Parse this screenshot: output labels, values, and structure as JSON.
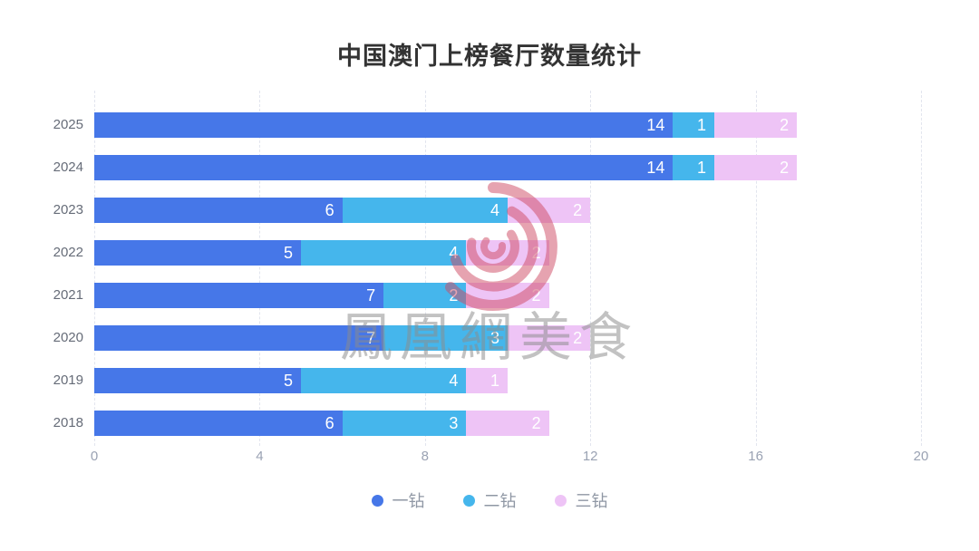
{
  "title": "中国澳门上榜餐厅数量统计",
  "watermark": {
    "logo": "phoenix-swirl-logo",
    "text": "鳳凰網美食"
  },
  "chart_data": {
    "type": "bar",
    "orientation": "horizontal",
    "stacked": true,
    "title": "中国澳门上榜餐厅数量统计",
    "categories": [
      "2025",
      "2024",
      "2023",
      "2022",
      "2021",
      "2020",
      "2019",
      "2018"
    ],
    "series": [
      {
        "name": "一钻",
        "color": "#4677e8",
        "values": [
          14,
          14,
          6,
          5,
          7,
          7,
          5,
          6
        ]
      },
      {
        "name": "二钻",
        "color": "#45b6ec",
        "values": [
          1,
          1,
          4,
          4,
          2,
          3,
          4,
          3
        ]
      },
      {
        "name": "三钻",
        "color": "#eec4f6",
        "values": [
          2,
          2,
          2,
          2,
          2,
          2,
          1,
          2
        ]
      }
    ],
    "xlim": [
      0,
      20
    ],
    "x_ticks": [
      "0",
      "4",
      "8",
      "12",
      "16",
      "20"
    ],
    "grid": "vertical-dashed",
    "legend_position": "bottom",
    "value_label_style": "inside-right-white",
    "xlabel": "",
    "ylabel": ""
  },
  "colors": {
    "background": "#ffffff",
    "title_text": "#333333",
    "category_label": "#666c78",
    "axis_tick_label": "#9aa2b3",
    "legend_text": "#8f97a4",
    "gridline": "#e2e5ee",
    "bar_value_label": "#ffffff",
    "watermark_red": "#cf4a63",
    "watermark_gray": "#8c8c8c"
  }
}
